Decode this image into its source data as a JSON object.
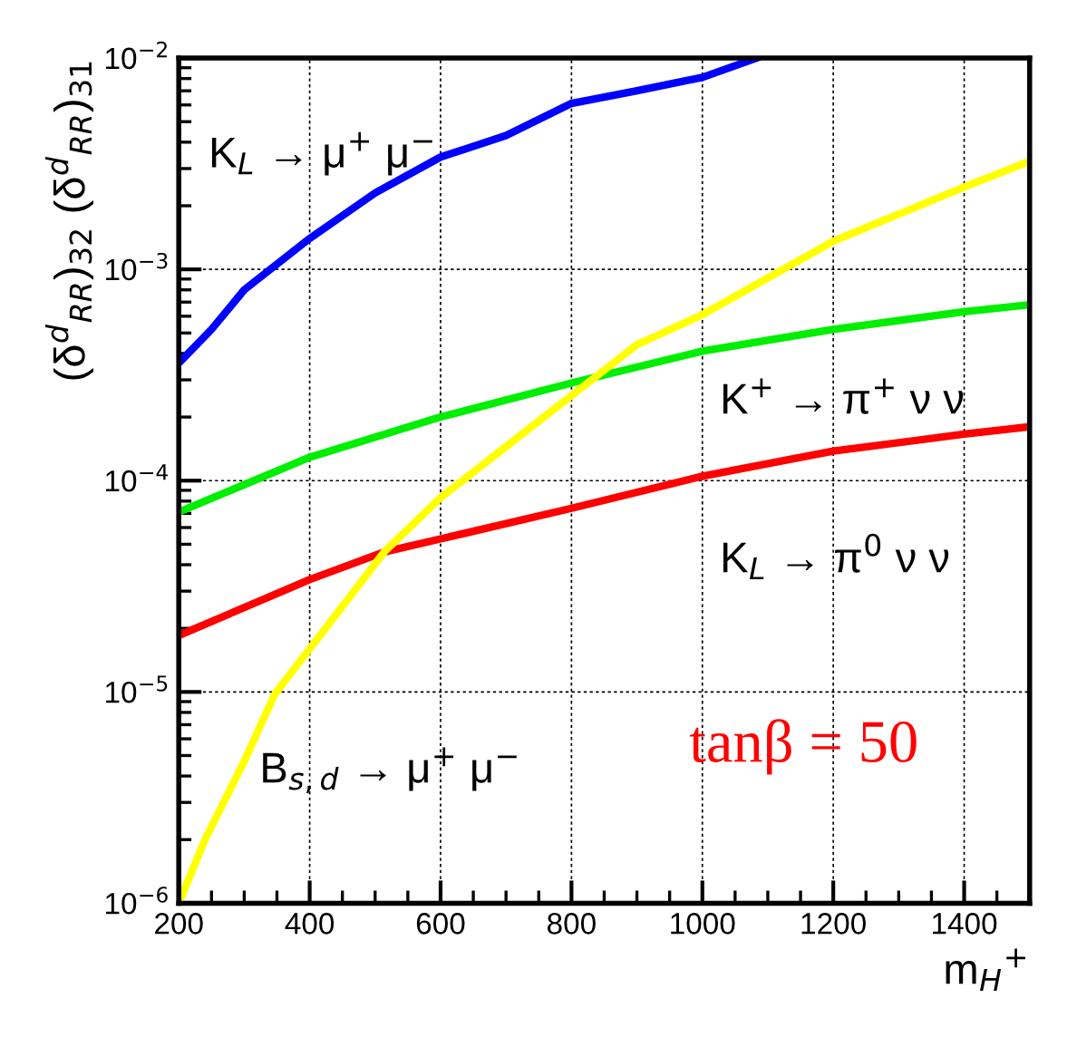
{
  "chart_data": {
    "type": "line",
    "xlabel": "m$_{H}$$^{+}$",
    "ylabel": "(δ$^{d}$$_{RR}$)$_{32}$ (δ$^{d}$$_{RR}$)$_{31}$",
    "log": "y",
    "grid": true,
    "marker": "none",
    "line_style": "solid",
    "xlim": [
      200,
      1500
    ],
    "xticks": [
      200,
      400,
      600,
      800,
      1000,
      1200,
      1400
    ],
    "ylim": [
      1e-06,
      0.01
    ],
    "yticks": [
      {
        "value": 1e-06,
        "label": "10$^{−6}$"
      },
      {
        "value": 1e-05,
        "label": "10$^{−5}$"
      },
      {
        "value": 0.0001,
        "label": "10$^{−4}$"
      },
      {
        "value": 0.001,
        "label": "10$^{−3}$"
      },
      {
        "value": 0.01,
        "label": "10$^{−2}$"
      }
    ],
    "series": [
      {
        "color": "#0000ff",
        "x": [
          200,
          250,
          300,
          400,
          500,
          600,
          700,
          800,
          900,
          1000,
          1083
        ],
        "values": [
          0.00036,
          0.00052,
          0.0008,
          0.0014,
          0.0023,
          0.0034,
          0.0043,
          0.0061,
          0.007,
          0.0081,
          0.01
        ]
      },
      {
        "color": "#00ee00",
        "x": [
          200,
          400,
          600,
          800,
          1000,
          1200,
          1400,
          1500
        ],
        "values": [
          7.1e-05,
          0.000129,
          0.0002,
          0.00029,
          0.00041,
          0.00052,
          0.00063,
          0.00068
        ]
      },
      {
        "color": "#ff0000",
        "x": [
          200,
          400,
          514,
          600,
          800,
          1000,
          1200,
          1400,
          1500
        ],
        "values": [
          1.85e-05,
          3.4e-05,
          4.6e-05,
          5.3e-05,
          7.4e-05,
          0.000105,
          0.000138,
          0.000166,
          0.00018
        ]
      },
      {
        "color": "#ffff00",
        "x": [
          200,
          240,
          300,
          347,
          400,
          514,
          600,
          700,
          828,
          900,
          1000,
          1200,
          1400,
          1500
        ],
        "values": [
          1e-06,
          2e-06,
          4.7e-06,
          9.8e-06,
          1.6e-05,
          4.6e-05,
          8.3e-05,
          0.000145,
          0.000295,
          0.00044,
          0.00061,
          0.00136,
          0.00245,
          0.00325
        ]
      }
    ],
    "annotations": [
      "K$_{L}$ → μ$^{+}$ μ$^{−}$",
      "K$^{+}$ → π$^{+}$ ν ν",
      "K$_{L}$ → π$^{0}$ ν ν",
      "B$_{s,d}$ → μ$^{+}$ μ$^{−}$",
      "tanβ = 50"
    ]
  }
}
